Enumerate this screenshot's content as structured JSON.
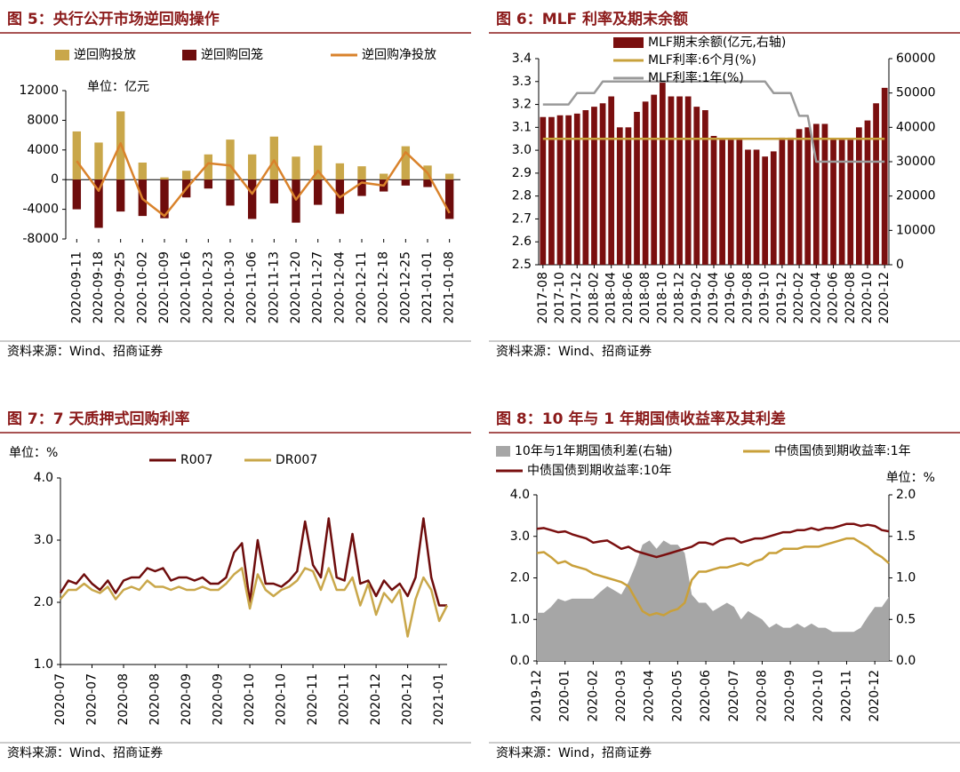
{
  "chart_data": [
    {
      "type": "combo",
      "title": "图 5：央行公开市场逆回购操作",
      "unit": "单位：亿元",
      "source": "资料来源：Wind、招商证券",
      "categories": [
        "2020-09-11",
        "2020-09-18",
        "2020-09-25",
        "2020-10-02",
        "2020-10-09",
        "2020-10-16",
        "2020-10-23",
        "2020-10-30",
        "2020-11-06",
        "2020-11-13",
        "2020-11-20",
        "2020-11-27",
        "2020-12-04",
        "2020-12-11",
        "2020-12-18",
        "2020-12-25",
        "2021-01-01",
        "2021-01-08"
      ],
      "series": [
        {
          "name": "逆回购投放",
          "type": "bar",
          "color": "#c9a74a",
          "values": [
            6500,
            5000,
            9200,
            2300,
            300,
            1200,
            3400,
            5400,
            3400,
            5800,
            3100,
            4600,
            2200,
            1800,
            800,
            4500,
            1900,
            800
          ]
        },
        {
          "name": "逆回购回笼",
          "type": "bar",
          "color": "#6e0c0c",
          "values": [
            -4000,
            -6500,
            -4300,
            -4900,
            -5200,
            -2400,
            -1200,
            -3500,
            -5300,
            -3200,
            -5800,
            -3400,
            -4600,
            -2200,
            -1600,
            -800,
            -1000,
            -5300
          ]
        },
        {
          "name": "逆回购净投放",
          "type": "line",
          "color": "#d9822b",
          "values": [
            2500,
            -1500,
            4900,
            -2600,
            -4900,
            -1200,
            2200,
            1900,
            -1900,
            2600,
            -2700,
            1200,
            -2400,
            -400,
            -800,
            3700,
            900,
            -4500
          ]
        }
      ],
      "ylim": [
        -8000,
        12000
      ],
      "yticks": [
        -8000,
        -4000,
        0,
        4000,
        8000,
        12000
      ]
    },
    {
      "type": "combo",
      "title": "图 6：MLF 利率及期末余额",
      "source": "资料来源：Wind、招商证券",
      "categories": [
        "2017-08",
        null,
        "2017-10",
        null,
        "2017-12",
        null,
        "2018-02",
        null,
        "2018-04",
        null,
        "2018-06",
        null,
        "2018-08",
        null,
        "2018-10",
        null,
        "2018-12",
        null,
        "2019-02",
        null,
        "2019-04",
        null,
        "2019-06",
        null,
        "2019-08",
        null,
        "2019-10",
        null,
        "2019-12",
        null,
        "2020-02",
        null,
        "2020-04",
        null,
        "2020-06",
        null,
        "2020-08",
        null,
        "2020-10",
        null,
        "2020-12"
      ],
      "series": [
        {
          "name": "MLF期末余额(亿元,右轴)",
          "type": "bar",
          "axis": "y2",
          "color": "#7a0f0f",
          "values": [
            43000,
            43000,
            43500,
            43500,
            44000,
            45000,
            46000,
            47000,
            49000,
            40000,
            40000,
            44500,
            47500,
            49500,
            53000,
            49000,
            49000,
            49000,
            46000,
            45000,
            37500,
            36500,
            36500,
            36500,
            33500,
            33500,
            31500,
            33000,
            37000,
            37000,
            39500,
            40000,
            41000,
            41000,
            36500,
            36500,
            36500,
            40000,
            42000,
            47000,
            51500
          ]
        },
        {
          "name": "MLF利率:6个月(%)",
          "type": "line",
          "color": "#c8a23c",
          "values": [
            3.05,
            3.05,
            3.05,
            3.05,
            3.05,
            3.05,
            3.05,
            3.05,
            3.05,
            3.05,
            3.05,
            3.05,
            3.05,
            3.05,
            3.05,
            3.05,
            3.05,
            3.05,
            3.05,
            3.05,
            3.05,
            3.05,
            3.05,
            3.05,
            3.05,
            3.05,
            3.05,
            3.05,
            3.05,
            3.05,
            3.05,
            3.05,
            3.05,
            3.05,
            3.05,
            3.05,
            3.05,
            3.05,
            3.05,
            3.05,
            3.05
          ]
        },
        {
          "name": "MLF利率:1年(%)",
          "type": "line",
          "color": "#9a9a9a",
          "values": [
            3.2,
            3.2,
            3.2,
            3.2,
            3.25,
            3.25,
            3.25,
            3.3,
            3.3,
            3.3,
            3.3,
            3.3,
            3.3,
            3.3,
            3.3,
            3.3,
            3.3,
            3.3,
            3.3,
            3.3,
            3.3,
            3.3,
            3.3,
            3.3,
            3.3,
            3.3,
            3.3,
            3.25,
            3.25,
            3.25,
            3.15,
            3.15,
            2.95,
            2.95,
            2.95,
            2.95,
            2.95,
            2.95,
            2.95,
            2.95,
            2.95
          ]
        }
      ],
      "ylim": [
        2.5,
        3.4
      ],
      "yticks": [
        2.5,
        2.6,
        2.7,
        2.8,
        2.9,
        {
          "value": 3,
          "label": "3.0"
        },
        3.1,
        3.2,
        3.3,
        3.4
      ],
      "y2lim": [
        0,
        60000
      ],
      "y2ticks": [
        0,
        10000,
        20000,
        30000,
        40000,
        50000,
        60000
      ]
    },
    {
      "type": "line",
      "title": "图 7：7 天质押式回购利率",
      "unit": "单位：%",
      "source": "资料来源：Wind、招商证券",
      "categories": [
        "2020-07",
        null,
        null,
        null,
        "2020-07",
        null,
        null,
        null,
        "2020-08",
        null,
        null,
        null,
        "2020-08",
        null,
        null,
        null,
        "2020-09",
        null,
        null,
        null,
        "2020-09",
        null,
        null,
        null,
        "2020-10",
        null,
        null,
        null,
        "2020-10",
        null,
        null,
        null,
        "2020-11",
        null,
        null,
        null,
        "2020-11",
        null,
        null,
        null,
        "2020-12",
        null,
        null,
        null,
        "2020-12",
        null,
        null,
        null,
        "2021-01",
        null
      ],
      "series": [
        {
          "name": "R007",
          "type": "line",
          "color": "#6e0c0c",
          "values": [
            2.15,
            2.35,
            2.3,
            2.45,
            2.3,
            2.2,
            2.35,
            2.15,
            2.35,
            2.4,
            2.4,
            2.55,
            2.5,
            2.55,
            2.35,
            2.4,
            2.4,
            2.35,
            2.4,
            2.3,
            2.3,
            2.4,
            2.8,
            2.95,
            2.0,
            3.0,
            2.3,
            2.3,
            2.25,
            2.35,
            2.5,
            3.3,
            2.6,
            2.4,
            3.35,
            2.4,
            2.35,
            3.1,
            2.3,
            2.35,
            2.1,
            2.35,
            2.2,
            2.3,
            2.1,
            2.4,
            3.35,
            2.4,
            1.95,
            1.95
          ]
        },
        {
          "name": "DR007",
          "type": "line",
          "color": "#c9a74a",
          "values": [
            2.05,
            2.2,
            2.2,
            2.3,
            2.2,
            2.15,
            2.25,
            2.05,
            2.2,
            2.25,
            2.2,
            2.35,
            2.25,
            2.25,
            2.2,
            2.25,
            2.2,
            2.2,
            2.25,
            2.2,
            2.2,
            2.3,
            2.45,
            2.55,
            1.9,
            2.45,
            2.2,
            2.1,
            2.2,
            2.25,
            2.35,
            2.55,
            2.5,
            2.2,
            2.55,
            2.2,
            2.2,
            2.4,
            1.95,
            2.3,
            1.8,
            2.15,
            2.0,
            2.2,
            1.45,
            2.05,
            2.4,
            2.2,
            1.7,
            1.95
          ]
        }
      ],
      "ylim": [
        1,
        4
      ],
      "yticks": [
        {
          "value": 1,
          "label": "1.0"
        },
        {
          "value": 2,
          "label": "2.0"
        },
        {
          "value": 3,
          "label": "3.0"
        },
        {
          "value": 4,
          "label": "4.0"
        }
      ]
    },
    {
      "type": "combo",
      "title": "图 8：10 年与 1 年期国债收益率及其利差",
      "unit": "单位：%",
      "source": "资料来源：Wind，招商证券",
      "categories": [
        "2019-12",
        null,
        null,
        null,
        "2020-01",
        null,
        null,
        null,
        "2020-02",
        null,
        null,
        null,
        "2020-03",
        null,
        null,
        null,
        "2020-04",
        null,
        null,
        null,
        "2020-05",
        null,
        null,
        null,
        "2020-06",
        null,
        null,
        null,
        "2020-07",
        null,
        null,
        null,
        "2020-08",
        null,
        null,
        null,
        "2020-09",
        null,
        null,
        null,
        "2020-10",
        null,
        null,
        null,
        "2020-11",
        null,
        null,
        null,
        "2020-12",
        null,
        null
      ],
      "series": [
        {
          "name": "10年与1年期国债利差(右轴)",
          "type": "area",
          "axis": "y2",
          "color": "#a6a6a6",
          "values": [
            0.58,
            0.58,
            0.65,
            0.75,
            0.72,
            0.75,
            0.75,
            0.75,
            0.75,
            0.83,
            0.9,
            0.85,
            0.8,
            0.95,
            1.15,
            1.4,
            1.45,
            1.35,
            1.45,
            1.4,
            1.4,
            1.3,
            0.8,
            0.7,
            0.7,
            0.6,
            0.65,
            0.7,
            0.65,
            0.5,
            0.6,
            0.55,
            0.5,
            0.4,
            0.45,
            0.4,
            0.4,
            0.45,
            0.4,
            0.45,
            0.4,
            0.4,
            0.35,
            0.35,
            0.35,
            0.35,
            0.4,
            0.53,
            0.65,
            0.65,
            0.77
          ]
        },
        {
          "name": "中债国债到期收益率:1年",
          "type": "line",
          "color": "#c9a03a",
          "values": [
            2.6,
            2.62,
            2.5,
            2.35,
            2.4,
            2.3,
            2.25,
            2.2,
            2.1,
            2.05,
            2.0,
            1.95,
            1.9,
            1.8,
            1.5,
            1.2,
            1.1,
            1.15,
            1.1,
            1.2,
            1.25,
            1.4,
            1.95,
            2.15,
            2.15,
            2.2,
            2.25,
            2.25,
            2.3,
            2.35,
            2.3,
            2.4,
            2.45,
            2.6,
            2.6,
            2.7,
            2.7,
            2.7,
            2.75,
            2.75,
            2.75,
            2.8,
            2.85,
            2.9,
            2.95,
            2.95,
            2.85,
            2.75,
            2.6,
            2.5,
            2.35
          ]
        },
        {
          "name": "中债国债到期收益率:10年",
          "type": "line",
          "color": "#7a0f0f",
          "values": [
            3.18,
            3.2,
            3.15,
            3.1,
            3.12,
            3.05,
            3.0,
            2.95,
            2.85,
            2.88,
            2.9,
            2.8,
            2.7,
            2.75,
            2.65,
            2.6,
            2.55,
            2.5,
            2.55,
            2.6,
            2.65,
            2.7,
            2.75,
            2.85,
            2.85,
            2.8,
            2.9,
            2.95,
            2.95,
            2.85,
            2.9,
            2.95,
            2.95,
            3.0,
            3.05,
            3.1,
            3.1,
            3.15,
            3.15,
            3.2,
            3.15,
            3.2,
            3.2,
            3.25,
            3.3,
            3.3,
            3.25,
            3.28,
            3.25,
            3.15,
            3.12
          ]
        }
      ],
      "ylim": [
        0,
        4
      ],
      "yticks": [
        {
          "value": 0,
          "label": "0.0"
        },
        {
          "value": 1,
          "label": "1.0"
        },
        {
          "value": 2,
          "label": "2.0"
        },
        {
          "value": 3,
          "label": "3.0"
        },
        {
          "value": 4,
          "label": "4.0"
        }
      ],
      "y2lim": [
        0,
        2
      ],
      "y2ticks": [
        {
          "value": 0,
          "label": "0.0"
        },
        0.5,
        {
          "value": 1,
          "label": "1.0"
        },
        1.5,
        {
          "value": 2,
          "label": "2.0"
        }
      ]
    }
  ]
}
